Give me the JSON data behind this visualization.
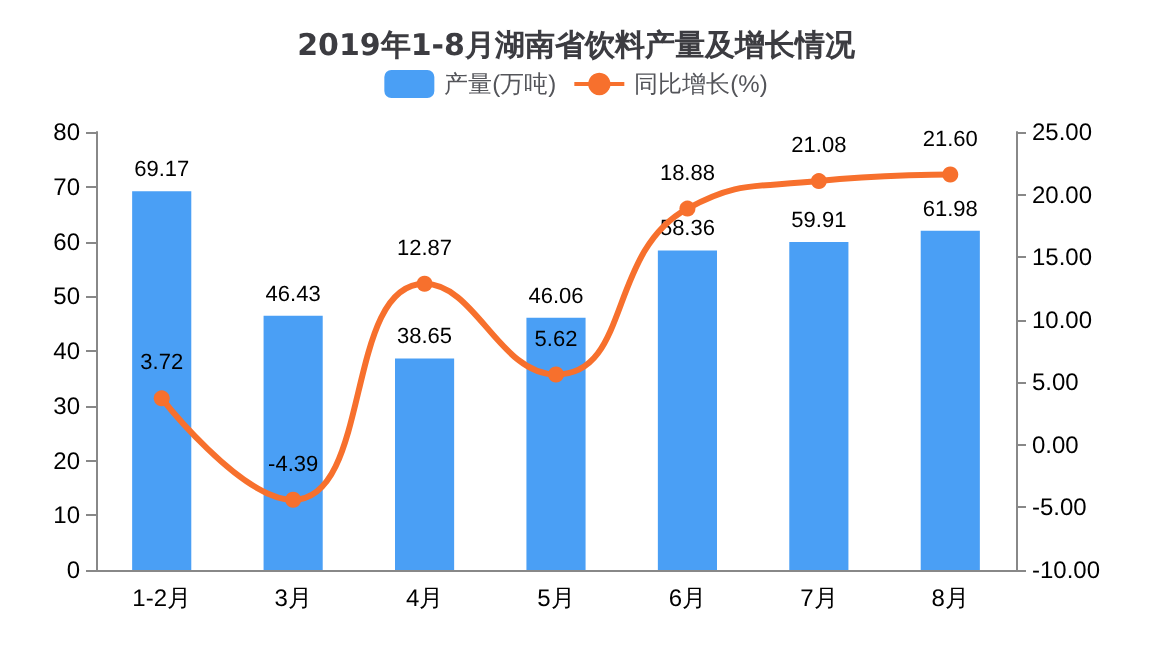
{
  "chart_data": {
    "type": "bar",
    "title": "2019年1-8月湖南省饮料产量及增长情况",
    "categories": [
      "1-2月",
      "3月",
      "4月",
      "5月",
      "6月",
      "7月",
      "8月"
    ],
    "series": [
      {
        "name": "产量(万吨)",
        "color": "#4a9ff5",
        "values": [
          69.17,
          46.43,
          38.65,
          46.06,
          58.36,
          59.91,
          61.98
        ]
      },
      {
        "name": "同比增长(%)",
        "type": "line",
        "axis": "y2",
        "color": "#f7702d",
        "values": [
          3.72,
          -4.39,
          12.87,
          5.62,
          18.88,
          21.08,
          21.6
        ],
        "value_labels": [
          "3.72",
          "-4.39",
          "12.87",
          "5.62",
          "18.88",
          "21.08",
          "21.60"
        ]
      }
    ],
    "data_labels": true,
    "ylim": [
      0,
      80
    ],
    "yticks": [
      0,
      10,
      20,
      30,
      40,
      50,
      60,
      70,
      80
    ],
    "y2lim": [
      -10,
      25
    ],
    "y2ticks": [
      {
        "value": -10,
        "label": "-10.00"
      },
      {
        "value": -5,
        "label": "-5.00"
      },
      {
        "value": 0,
        "label": "0.00"
      },
      {
        "value": 5,
        "label": "5.00"
      },
      {
        "value": 10,
        "label": "10.00"
      },
      {
        "value": 15,
        "label": "15.00"
      },
      {
        "value": 20,
        "label": "20.00"
      },
      {
        "value": 25,
        "label": "25.00"
      }
    ],
    "legend": "top",
    "marker": "circle",
    "grid": false
  }
}
